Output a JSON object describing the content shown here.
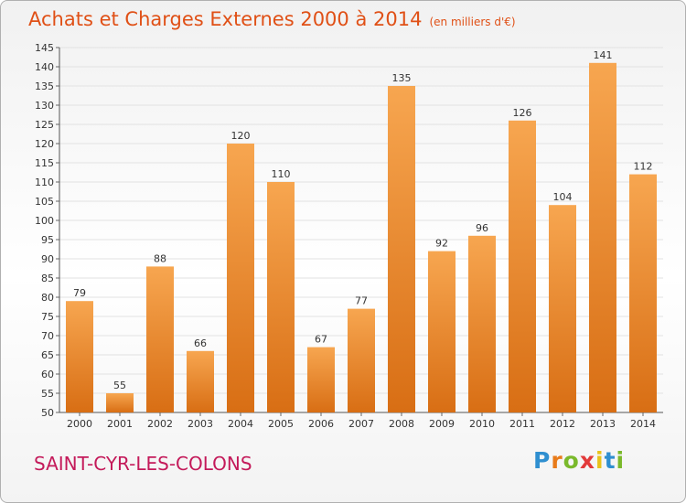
{
  "title": "Achats et Charges Externes 2000 à 2014",
  "subtitle": "(en milliers d'€)",
  "commune": "SAINT-CYR-LES-COLONS",
  "logo": {
    "letters": [
      "P",
      "r",
      "o",
      "x",
      "i",
      "t",
      "i"
    ],
    "colors": [
      "#2f8fd0",
      "#e87b1a",
      "#7ab92b",
      "#e23a3a",
      "#e8c21a",
      "#2f8fd0",
      "#7ab92b"
    ]
  },
  "colors": {
    "bar_top": "#f7a650",
    "bar_bottom": "#d86e14",
    "title": "#e05016",
    "commune": "#c41a5a",
    "grid": "#e2e2e2"
  },
  "chart_data": {
    "type": "bar",
    "title": "Achats et Charges Externes 2000 à 2014",
    "categories": [
      "2000",
      "2001",
      "2002",
      "2003",
      "2004",
      "2005",
      "2006",
      "2007",
      "2008",
      "2009",
      "2010",
      "2011",
      "2012",
      "2013",
      "2014"
    ],
    "values": [
      79,
      55,
      88,
      66,
      120,
      110,
      67,
      77,
      135,
      92,
      96,
      126,
      104,
      141,
      112
    ],
    "ylim": [
      50,
      145
    ],
    "yticks": [
      50,
      55,
      60,
      65,
      70,
      75,
      80,
      85,
      90,
      95,
      100,
      105,
      110,
      115,
      120,
      125,
      130,
      135,
      140,
      145
    ],
    "grid": true
  }
}
